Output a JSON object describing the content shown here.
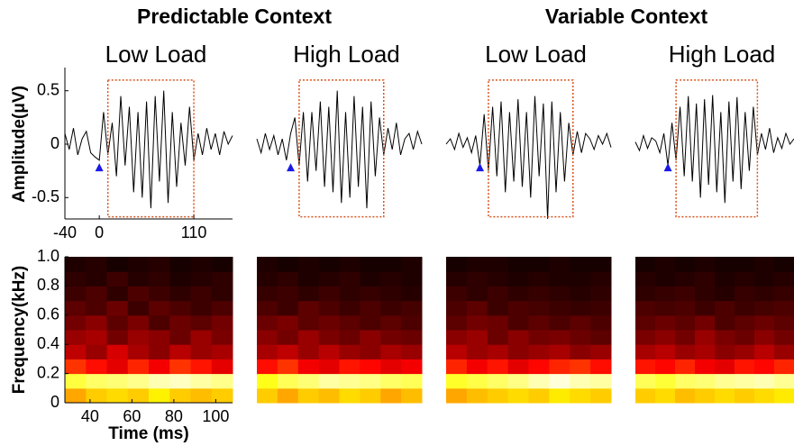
{
  "chart_data": [
    {
      "type": "line",
      "groups": [
        "Predictable Context",
        "Variable Context"
      ],
      "panels": [
        "Low Load",
        "High Load",
        "Low Load",
        "High Load"
      ],
      "ylabel": "Amplitude(μV)",
      "xlim": [
        -40,
        155
      ],
      "ylim": [
        -0.7,
        0.7
      ],
      "xticks": [
        -40,
        0,
        110
      ],
      "yticks": [
        -0.5,
        0,
        0.5
      ],
      "color": "#000000",
      "window": {
        "x": [
          10,
          110
        ],
        "y": [
          -0.68,
          0.6
        ],
        "color": "#d9541e"
      },
      "onset": {
        "x": 0,
        "y": -0.22,
        "color": "#1a1ae6"
      },
      "x": [
        -40,
        -35,
        -30,
        -25,
        -20,
        -15,
        -10,
        -5,
        0,
        5,
        10,
        15,
        20,
        25,
        30,
        35,
        40,
        45,
        50,
        55,
        60,
        65,
        70,
        75,
        80,
        85,
        90,
        95,
        100,
        105,
        110,
        115,
        120,
        125,
        130,
        135,
        140,
        145,
        150,
        155
      ],
      "series": [
        {
          "values": [
            0.1,
            -0.05,
            0.15,
            -0.1,
            0.05,
            0.12,
            -0.08,
            -0.12,
            -0.15,
            0.3,
            -0.1,
            0.2,
            -0.3,
            0.45,
            -0.2,
            0.35,
            -0.45,
            0.3,
            -0.5,
            0.4,
            -0.6,
            0.45,
            -0.35,
            0.5,
            -0.55,
            0.3,
            -0.4,
            0.2,
            -0.2,
            0.35,
            -0.15,
            0.1,
            -0.1,
            0.15,
            -0.05,
            0.1,
            -0.1,
            0.12,
            0.0,
            0.08
          ]
        },
        {
          "values": [
            0.05,
            -0.08,
            0.1,
            -0.05,
            0.08,
            -0.1,
            0.05,
            -0.15,
            0.1,
            0.25,
            -0.2,
            0.3,
            -0.35,
            0.3,
            -0.25,
            0.4,
            -0.4,
            0.35,
            -0.45,
            0.5,
            -0.55,
            0.3,
            -0.5,
            0.45,
            -0.4,
            0.35,
            -0.6,
            0.4,
            -0.3,
            0.25,
            -0.1,
            0.15,
            -0.05,
            0.2,
            -0.1,
            0.05,
            0.1,
            -0.05,
            0.12,
            0.0
          ]
        },
        {
          "values": [
            0.0,
            0.05,
            -0.05,
            0.1,
            -0.03,
            0.06,
            -0.08,
            0.08,
            -0.2,
            0.28,
            -0.25,
            0.35,
            -0.3,
            0.4,
            -0.45,
            0.3,
            -0.35,
            0.42,
            -0.4,
            0.3,
            -0.5,
            0.45,
            -0.3,
            0.38,
            -0.7,
            0.4,
            -0.45,
            0.3,
            -0.35,
            0.2,
            -0.1,
            0.12,
            -0.08,
            0.1,
            0.05,
            -0.05,
            0.08,
            0.0,
            0.1,
            -0.03
          ]
        },
        {
          "values": [
            0.02,
            -0.06,
            0.08,
            -0.04,
            0.06,
            0.03,
            -0.08,
            0.1,
            -0.2,
            0.2,
            -0.15,
            0.35,
            -0.3,
            0.45,
            -0.35,
            0.38,
            -0.5,
            0.42,
            -0.38,
            0.46,
            -0.45,
            0.3,
            -0.55,
            0.4,
            -0.35,
            0.44,
            -0.42,
            0.3,
            -0.25,
            0.35,
            -0.1,
            0.1,
            -0.05,
            0.15,
            -0.08,
            0.06,
            -0.04,
            0.1,
            0.0,
            0.05
          ]
        }
      ]
    },
    {
      "type": "heatmap",
      "ylabel": "Frequency(kHz)",
      "xlabel": "Time (ms)",
      "xlim": [
        28,
        108
      ],
      "ylim": [
        0,
        1
      ],
      "xticks": [
        40,
        60,
        80,
        100
      ],
      "yticks": [
        0,
        0.2,
        0.4,
        0.6,
        0.8,
        {
          "value": 1,
          "label": "1.0"
        }
      ],
      "colormap": "hot",
      "x": [
        33,
        43,
        53,
        63,
        73,
        83,
        93,
        103
      ],
      "y": [
        0.05,
        0.15,
        0.25,
        0.35,
        0.45,
        0.55,
        0.65,
        0.75,
        0.85,
        0.95
      ],
      "values": [
        [
          [
            0.55,
            0.6,
            0.62,
            0.6,
            0.65,
            0.6,
            0.58,
            0.6
          ],
          [
            0.75,
            0.8,
            0.82,
            0.85,
            0.9,
            0.92,
            0.88,
            0.85
          ],
          [
            0.4,
            0.35,
            0.3,
            0.38,
            0.32,
            0.4,
            0.36,
            0.3
          ],
          [
            0.25,
            0.2,
            0.28,
            0.22,
            0.18,
            0.24,
            0.2,
            0.22
          ],
          [
            0.2,
            0.22,
            0.15,
            0.2,
            0.18,
            0.14,
            0.2,
            0.16
          ],
          [
            0.15,
            0.18,
            0.12,
            0.16,
            0.1,
            0.14,
            0.12,
            0.15
          ],
          [
            0.12,
            0.1,
            0.14,
            0.08,
            0.12,
            0.1,
            0.08,
            0.1
          ],
          [
            0.08,
            0.1,
            0.06,
            0.1,
            0.08,
            0.06,
            0.08,
            0.06
          ],
          [
            0.06,
            0.05,
            0.08,
            0.05,
            0.06,
            0.04,
            0.05,
            0.06
          ],
          [
            0.04,
            0.05,
            0.03,
            0.04,
            0.05,
            0.03,
            0.04,
            0.03
          ]
        ],
        [
          [
            0.6,
            0.55,
            0.6,
            0.58,
            0.62,
            0.6,
            0.55,
            0.58
          ],
          [
            0.7,
            0.78,
            0.82,
            0.88,
            0.86,
            0.84,
            0.8,
            0.78
          ],
          [
            0.35,
            0.4,
            0.32,
            0.3,
            0.36,
            0.34,
            0.3,
            0.32
          ],
          [
            0.22,
            0.25,
            0.2,
            0.24,
            0.2,
            0.18,
            0.22,
            0.2
          ],
          [
            0.18,
            0.15,
            0.2,
            0.16,
            0.14,
            0.18,
            0.15,
            0.14
          ],
          [
            0.14,
            0.16,
            0.12,
            0.14,
            0.12,
            0.1,
            0.12,
            0.1
          ],
          [
            0.1,
            0.08,
            0.12,
            0.1,
            0.08,
            0.1,
            0.08,
            0.09
          ],
          [
            0.07,
            0.08,
            0.06,
            0.08,
            0.06,
            0.07,
            0.06,
            0.05
          ],
          [
            0.05,
            0.06,
            0.04,
            0.05,
            0.06,
            0.04,
            0.05,
            0.04
          ],
          [
            0.04,
            0.03,
            0.04,
            0.03,
            0.04,
            0.03,
            0.03,
            0.04
          ]
        ],
        [
          [
            0.55,
            0.58,
            0.6,
            0.62,
            0.6,
            0.64,
            0.62,
            0.6
          ],
          [
            0.72,
            0.76,
            0.8,
            0.84,
            0.9,
            0.95,
            0.9,
            0.88
          ],
          [
            0.38,
            0.32,
            0.36,
            0.3,
            0.34,
            0.38,
            0.4,
            0.35
          ],
          [
            0.24,
            0.2,
            0.22,
            0.18,
            0.2,
            0.22,
            0.18,
            0.2
          ],
          [
            0.18,
            0.2,
            0.14,
            0.18,
            0.15,
            0.16,
            0.14,
            0.12
          ],
          [
            0.12,
            0.15,
            0.14,
            0.1,
            0.12,
            0.1,
            0.12,
            0.1
          ],
          [
            0.1,
            0.12,
            0.08,
            0.1,
            0.09,
            0.08,
            0.07,
            0.08
          ],
          [
            0.08,
            0.06,
            0.08,
            0.06,
            0.07,
            0.06,
            0.05,
            0.06
          ],
          [
            0.05,
            0.06,
            0.05,
            0.04,
            0.05,
            0.04,
            0.04,
            0.05
          ],
          [
            0.03,
            0.04,
            0.04,
            0.03,
            0.03,
            0.04,
            0.03,
            0.03
          ]
        ],
        [
          [
            0.6,
            0.62,
            0.58,
            0.6,
            0.62,
            0.6,
            0.62,
            0.64
          ],
          [
            0.78,
            0.74,
            0.8,
            0.82,
            0.86,
            0.88,
            0.9,
            0.86
          ],
          [
            0.36,
            0.34,
            0.38,
            0.32,
            0.3,
            0.36,
            0.34,
            0.38
          ],
          [
            0.22,
            0.24,
            0.2,
            0.22,
            0.18,
            0.2,
            0.24,
            0.2
          ],
          [
            0.16,
            0.18,
            0.15,
            0.2,
            0.16,
            0.14,
            0.18,
            0.15
          ],
          [
            0.12,
            0.14,
            0.12,
            0.15,
            0.1,
            0.12,
            0.14,
            0.12
          ],
          [
            0.1,
            0.09,
            0.1,
            0.08,
            0.1,
            0.08,
            0.09,
            0.1
          ],
          [
            0.06,
            0.07,
            0.08,
            0.06,
            0.05,
            0.07,
            0.06,
            0.07
          ],
          [
            0.05,
            0.04,
            0.05,
            0.06,
            0.04,
            0.05,
            0.04,
            0.05
          ],
          [
            0.03,
            0.04,
            0.03,
            0.04,
            0.03,
            0.03,
            0.04,
            0.03
          ]
        ]
      ]
    }
  ]
}
